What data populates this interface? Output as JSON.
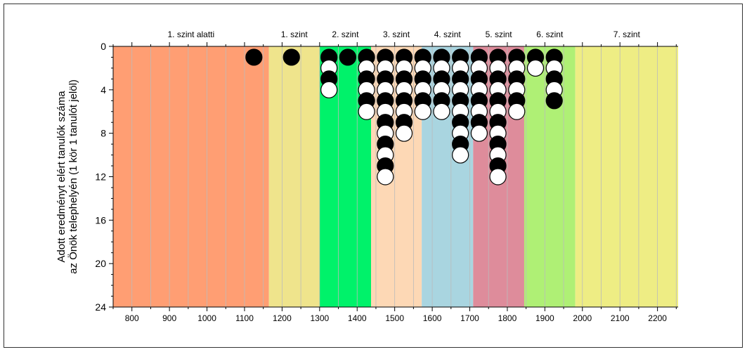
{
  "chart_data": {
    "type": "scatter",
    "title": "",
    "ylabel_lines": [
      "Adott eredményt elért tanulók száma",
      "az Önök telephelyén (1 kör 1 tanulót jelöl)"
    ],
    "xlabel": "",
    "xlim": [
      750,
      2255
    ],
    "ylim": [
      0,
      24
    ],
    "y_inverted": true,
    "x_ticks": [
      800,
      900,
      1000,
      1100,
      1200,
      1300,
      1400,
      1500,
      1600,
      1700,
      1800,
      1900,
      2000,
      2100,
      2200
    ],
    "x_tick_labels": [
      "800",
      "900",
      "1000",
      "1100",
      "1200",
      "1300",
      "1400",
      "1500",
      "1600",
      "1700",
      "1800",
      "1900",
      "2000",
      "2100",
      "2200"
    ],
    "y_ticks": [
      0,
      4,
      8,
      12,
      16,
      20,
      24
    ],
    "y_tick_labels": [
      "0",
      "4",
      "8",
      "12",
      "16",
      "20",
      "24"
    ],
    "bands": [
      {
        "label": "1. szint alatti",
        "from": 750,
        "to": 1165,
        "color": "#FF9E73"
      },
      {
        "label": "1. szint",
        "from": 1165,
        "to": 1300,
        "color": "#EFE48C"
      },
      {
        "label": "2. szint",
        "from": 1300,
        "to": 1437,
        "color": "#00F26A"
      },
      {
        "label": "3. szint",
        "from": 1437,
        "to": 1572,
        "color": "#FDD8B5"
      },
      {
        "label": "4. szint",
        "from": 1572,
        "to": 1709,
        "color": "#A9D5E0"
      },
      {
        "label": "5. szint",
        "from": 1709,
        "to": 1845,
        "color": "#DE8C9B"
      },
      {
        "label": "6. szint",
        "from": 1845,
        "to": 1981,
        "color": "#AFF075"
      },
      {
        "label": "7. szint",
        "from": 1981,
        "to": 2255,
        "color": "#EEED84"
      }
    ],
    "series": [
      {
        "x": 1125,
        "colors": [
          "black"
        ]
      },
      {
        "x": 1225,
        "colors": [
          "black"
        ]
      },
      {
        "x": 1325,
        "colors": [
          "black",
          "white",
          "black",
          "white"
        ]
      },
      {
        "x": 1375,
        "colors": [
          "black"
        ]
      },
      {
        "x": 1425,
        "colors": [
          "black",
          "white",
          "black",
          "white",
          "black",
          "white"
        ]
      },
      {
        "x": 1475,
        "colors": [
          "black",
          "white",
          "black",
          "white",
          "black",
          "white",
          "black",
          "white",
          "black",
          "white",
          "black",
          "white"
        ]
      },
      {
        "x": 1525,
        "colors": [
          "black",
          "white",
          "black",
          "white",
          "black",
          "white",
          "black",
          "white"
        ]
      },
      {
        "x": 1575,
        "colors": [
          "black",
          "white",
          "black",
          "white",
          "black",
          "white"
        ]
      },
      {
        "x": 1625,
        "colors": [
          "black",
          "white",
          "black",
          "white",
          "black",
          "white"
        ]
      },
      {
        "x": 1675,
        "colors": [
          "black",
          "white",
          "black",
          "white",
          "black",
          "white",
          "black",
          "white",
          "black",
          "white"
        ]
      },
      {
        "x": 1725,
        "colors": [
          "black",
          "white",
          "black",
          "white",
          "black",
          "white",
          "black",
          "white"
        ]
      },
      {
        "x": 1775,
        "colors": [
          "black",
          "white",
          "black",
          "white",
          "black",
          "white",
          "black",
          "white",
          "black",
          "white",
          "black",
          "white"
        ]
      },
      {
        "x": 1825,
        "colors": [
          "black",
          "white",
          "black",
          "white",
          "black",
          "white"
        ]
      },
      {
        "x": 1875,
        "colors": [
          "black",
          "white"
        ]
      },
      {
        "x": 1925,
        "colors": [
          "black",
          "white",
          "black",
          "white",
          "black"
        ]
      }
    ],
    "colors": {
      "black": "#000000",
      "white": "#ffffff",
      "grid": "#bbbbbb",
      "axis": "#000000"
    },
    "grid": true
  }
}
